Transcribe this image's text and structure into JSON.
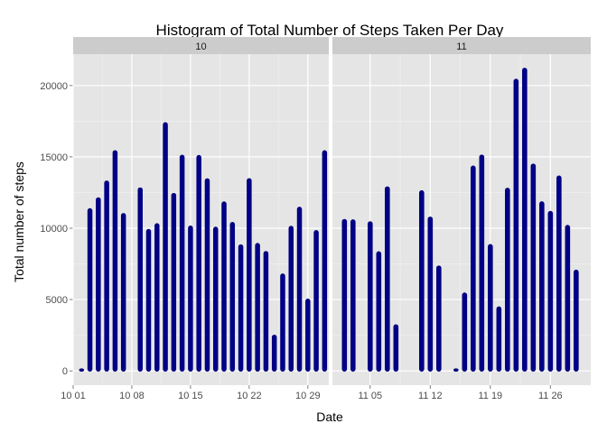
{
  "chart_data": {
    "type": "bar",
    "title": "Histogram of Total Number of Steps Taken Per Day",
    "xlabel": "Date",
    "ylabel": "Total number of steps",
    "ylim": [
      -1000,
      22200
    ],
    "yticks": [
      0,
      5000,
      10000,
      15000,
      20000
    ],
    "y_tick_labels": [
      "0",
      "5000",
      "10000",
      "15000",
      "20000"
    ],
    "bar_fill": "#00008b",
    "bar_outline": "#000080",
    "panel_background": "#e5e5e5",
    "strip_background": "#cccccc",
    "grid": true,
    "facets": [
      {
        "label": "10",
        "x_range": [
          1,
          31.5
        ],
        "x_ticks": [
          1,
          8,
          15,
          22,
          29
        ],
        "x_tick_labels": [
          "10 01",
          "10 08",
          "10 15",
          "10 22",
          "10 29"
        ],
        "x": [
          1,
          2,
          3,
          4,
          5,
          6,
          7,
          8,
          9,
          10,
          11,
          12,
          13,
          14,
          15,
          16,
          17,
          18,
          19,
          20,
          21,
          22,
          23,
          24,
          25,
          26,
          27,
          28,
          29,
          30,
          31
        ],
        "values": [
          0,
          126,
          11352,
          12116,
          13294,
          15420,
          11015,
          0,
          12811,
          9900,
          10304,
          17382,
          12426,
          15098,
          10139,
          15084,
          13452,
          10056,
          11829,
          10395,
          8821,
          13460,
          8918,
          8355,
          2492,
          6778,
          10119,
          11458,
          5018,
          9819,
          15414
        ]
      },
      {
        "label": "11",
        "x_range": [
          0.6,
          30.7
        ],
        "x_ticks": [
          5,
          12,
          19,
          26
        ],
        "x_tick_labels": [
          "11 05",
          "11 12",
          "11 19",
          "11 26"
        ],
        "x": [
          1,
          2,
          3,
          4,
          5,
          6,
          7,
          8,
          9,
          10,
          11,
          12,
          13,
          14,
          15,
          16,
          17,
          18,
          19,
          20,
          21,
          22,
          23,
          24,
          25,
          26,
          27,
          28,
          29,
          30
        ],
        "values": [
          0,
          10600,
          10571,
          0,
          10439,
          8334,
          12883,
          3219,
          0,
          0,
          12608,
          10765,
          7336,
          0,
          41,
          5441,
          14339,
          15110,
          8841,
          4472,
          12787,
          20427,
          21194,
          14478,
          11834,
          11162,
          13646,
          10183,
          7047,
          0
        ]
      }
    ]
  }
}
